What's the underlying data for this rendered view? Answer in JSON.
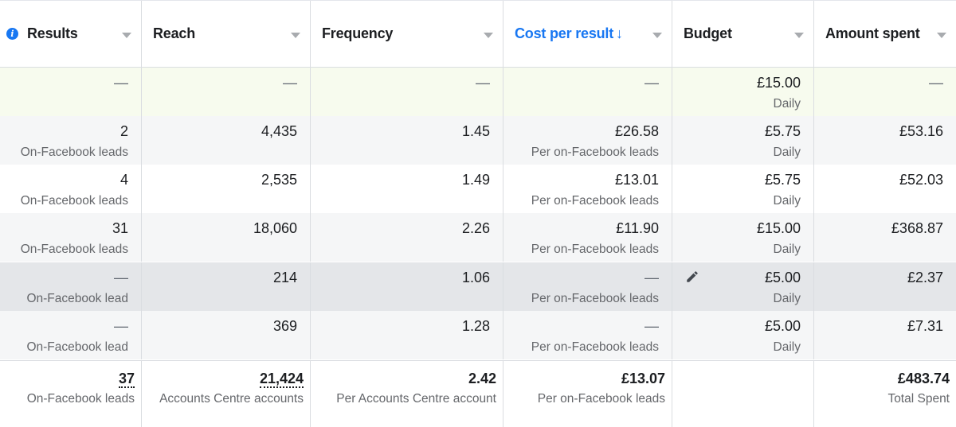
{
  "columns": [
    {
      "label": "Results"
    },
    {
      "label": "Reach"
    },
    {
      "label": "Frequency"
    },
    {
      "label": "Cost per result",
      "sort_glyph": "↓"
    },
    {
      "label": "Budget"
    },
    {
      "label": "Amount spent"
    }
  ],
  "icons": {
    "info": "info-icon",
    "caret": "chevron-down-icon",
    "edit": "pencil-icon"
  },
  "colors": {
    "accent": "#1877f2",
    "row_highlight": "#f7fbee",
    "row_alt": "#f5f6f7",
    "row_selected": "#e4e6e9"
  },
  "rows": [
    {
      "results": {
        "value": "—",
        "sub": ""
      },
      "reach": "—",
      "frequency": "—",
      "cost": {
        "value": "—",
        "sub": ""
      },
      "budget": {
        "value": "£15.00",
        "sub": "Daily"
      },
      "spent": "—"
    },
    {
      "results": {
        "value": "2",
        "sub": "On-Facebook leads"
      },
      "reach": "4,435",
      "frequency": "1.45",
      "cost": {
        "value": "£26.58",
        "sub": "Per on-Facebook leads"
      },
      "budget": {
        "value": "£5.75",
        "sub": "Daily"
      },
      "spent": "£53.16"
    },
    {
      "results": {
        "value": "4",
        "sub": "On-Facebook leads"
      },
      "reach": "2,535",
      "frequency": "1.49",
      "cost": {
        "value": "£13.01",
        "sub": "Per on-Facebook leads"
      },
      "budget": {
        "value": "£5.75",
        "sub": "Daily"
      },
      "spent": "£52.03"
    },
    {
      "results": {
        "value": "31",
        "sub": "On-Facebook leads"
      },
      "reach": "18,060",
      "frequency": "2.26",
      "cost": {
        "value": "£11.90",
        "sub": "Per on-Facebook leads"
      },
      "budget": {
        "value": "£15.00",
        "sub": "Daily"
      },
      "spent": "£368.87"
    },
    {
      "results": {
        "value": "—",
        "sub": "On-Facebook lead"
      },
      "reach": "214",
      "frequency": "1.06",
      "cost": {
        "value": "—",
        "sub": "Per on-Facebook leads"
      },
      "budget": {
        "value": "£5.00",
        "sub": "Daily"
      },
      "spent": "£2.37"
    },
    {
      "results": {
        "value": "—",
        "sub": "On-Facebook lead"
      },
      "reach": "369",
      "frequency": "1.28",
      "cost": {
        "value": "—",
        "sub": "Per on-Facebook leads"
      },
      "budget": {
        "value": "£5.00",
        "sub": "Daily"
      },
      "spent": "£7.31"
    }
  ],
  "totals": {
    "results": {
      "value": "37",
      "sub": "On-Facebook leads"
    },
    "reach": {
      "value": "21,424",
      "sub": "Accounts Centre accounts"
    },
    "frequency": {
      "value": "2.42",
      "sub": "Per Accounts Centre account"
    },
    "cost": {
      "value": "£13.07",
      "sub": "Per on-Facebook leads"
    },
    "spent": {
      "value": "£483.74",
      "sub": "Total Spent"
    }
  }
}
